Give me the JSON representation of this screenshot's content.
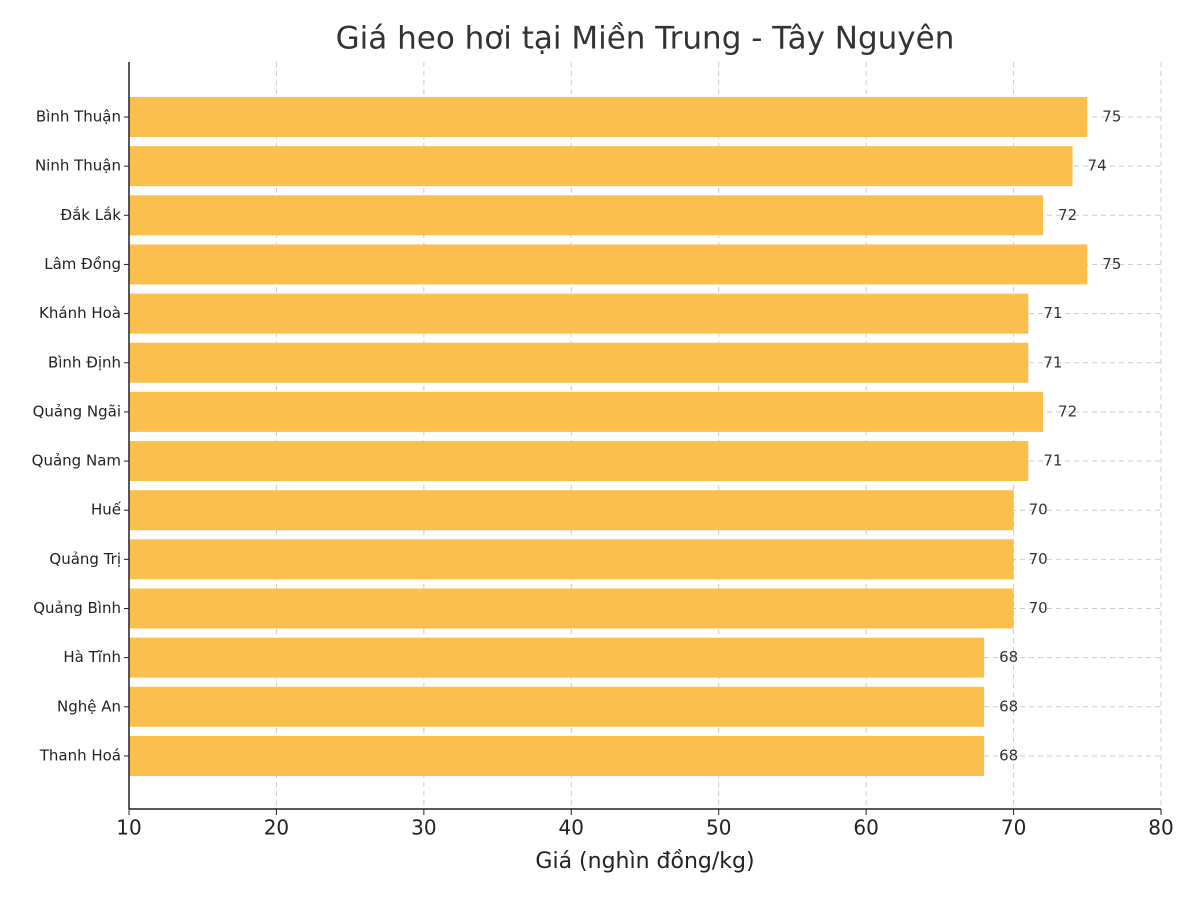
{
  "chart_data": {
    "type": "barh",
    "title": "Giá heo hơi tại Miền Trung - Tây Nguyên",
    "xlabel": "Giá (nghìn đồng/kg)",
    "categories": [
      "Bình Thuận",
      "Ninh Thuận",
      "Đắk Lắk",
      "Lâm Đồng",
      "Khánh Hoà",
      "Bình Định",
      "Quảng Ngãi",
      "Quảng Nam",
      "Huế",
      "Quảng Trị",
      "Quảng Bình",
      "Hà Tĩnh",
      "Nghệ An",
      "Thanh Hoá"
    ],
    "values": [
      75,
      74,
      72,
      75,
      71,
      71,
      72,
      71,
      70,
      70,
      70,
      68,
      68,
      68
    ],
    "color": "#fbbf4d",
    "xlim": [
      10,
      80
    ],
    "xticks": [
      10,
      20,
      30,
      40,
      50,
      60,
      70,
      80
    ],
    "grid": true
  }
}
